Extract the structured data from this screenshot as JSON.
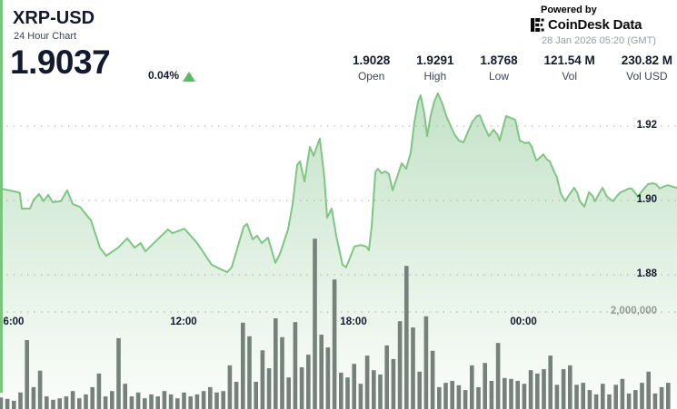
{
  "header": {
    "symbol": "XRP-USD",
    "subtitle": "24 Hour Chart",
    "price": "1.9037",
    "change_pct": "0.04%",
    "change_direction": "up",
    "stats": [
      {
        "value": "1.9028",
        "label": "Open"
      },
      {
        "value": "1.9291",
        "label": "High"
      },
      {
        "value": "1.8768",
        "label": "Low"
      },
      {
        "value": "121.54 M",
        "label": "Vol"
      },
      {
        "value": "230.82 M",
        "label": "Vol USD"
      }
    ]
  },
  "branding": {
    "powered_by": "Powered by",
    "brand_name": "CoinDesk",
    "brand_suffix": "Data",
    "timestamp": "28 Jan 2026 05:20 (GMT)"
  },
  "chart_data": {
    "type": "area",
    "title": "XRP-USD 24 Hour Chart",
    "legend": "none",
    "grid": "dotted horizontal",
    "x_axis": {
      "unit": "time of day (hours, 24 = midnight next day)",
      "domain_hours": [
        5.52,
        29.42
      ],
      "ticks": [
        {
          "t": 6,
          "label": "6:00"
        },
        {
          "t": 12,
          "label": "12:00"
        },
        {
          "t": 18,
          "label": "18:00"
        },
        {
          "t": 24,
          "label": "00:00"
        }
      ]
    },
    "price_axis": {
      "side": "right",
      "ylim": [
        1.87,
        1.93
      ],
      "ticks": [
        {
          "value": 1.92,
          "label": "1.92"
        },
        {
          "value": 1.9,
          "label": "1.90"
        },
        {
          "value": 1.88,
          "label": "1.88"
        }
      ]
    },
    "volume_axis": {
      "tick": {
        "value_millions": 2,
        "label": "2,000,000"
      }
    },
    "price_series": [
      [
        5.52,
        1.9032
      ],
      [
        5.84,
        1.9027
      ],
      [
        6.16,
        1.9022
      ],
      [
        6.22,
        1.902
      ],
      [
        6.29,
        1.8978
      ],
      [
        6.58,
        1.8978
      ],
      [
        6.71,
        1.9002
      ],
      [
        6.9,
        1.9017
      ],
      [
        7.06,
        1.8998
      ],
      [
        7.22,
        1.9015
      ],
      [
        7.38,
        1.8995
      ],
      [
        7.67,
        1.8998
      ],
      [
        7.89,
        1.9027
      ],
      [
        8.09,
        1.899
      ],
      [
        8.34,
        1.8983
      ],
      [
        8.73,
        1.8946
      ],
      [
        9.05,
        1.8873
      ],
      [
        9.27,
        1.8851
      ],
      [
        9.69,
        1.8873
      ],
      [
        10.01,
        1.8898
      ],
      [
        10.27,
        1.8873
      ],
      [
        10.49,
        1.8885
      ],
      [
        10.65,
        1.8863
      ],
      [
        11.45,
        1.8922
      ],
      [
        11.61,
        1.8912
      ],
      [
        12.03,
        1.8924
      ],
      [
        12.48,
        1.8885
      ],
      [
        12.99,
        1.8827
      ],
      [
        13.31,
        1.8815
      ],
      [
        13.54,
        1.8807
      ],
      [
        13.7,
        1.882
      ],
      [
        14.12,
        1.8929
      ],
      [
        14.24,
        1.8937
      ],
      [
        14.44,
        1.8895
      ],
      [
        14.6,
        1.8905
      ],
      [
        14.76,
        1.8885
      ],
      [
        14.98,
        1.89
      ],
      [
        15.24,
        1.8832
      ],
      [
        15.4,
        1.8856
      ],
      [
        15.69,
        1.8922
      ],
      [
        15.85,
        1.899
      ],
      [
        16.01,
        1.9095
      ],
      [
        16.11,
        1.9105
      ],
      [
        16.27,
        1.9051
      ],
      [
        16.46,
        1.9144
      ],
      [
        16.59,
        1.912
      ],
      [
        16.81,
        1.9166
      ],
      [
        16.97,
        1.9063
      ],
      [
        17.07,
        1.8954
      ],
      [
        17.23,
        1.8978
      ],
      [
        17.39,
        1.8905
      ],
      [
        17.61,
        1.8827
      ],
      [
        17.74,
        1.882
      ],
      [
        17.93,
        1.8856
      ],
      [
        18.03,
        1.8876
      ],
      [
        18.25,
        1.888
      ],
      [
        18.45,
        1.8876
      ],
      [
        18.54,
        1.8866
      ],
      [
        18.64,
        1.8929
      ],
      [
        18.77,
        1.9076
      ],
      [
        18.86,
        1.9085
      ],
      [
        18.99,
        1.9073
      ],
      [
        19.12,
        1.9078
      ],
      [
        19.25,
        1.9071
      ],
      [
        19.38,
        1.9027
      ],
      [
        19.54,
        1.9063
      ],
      [
        19.7,
        1.91
      ],
      [
        19.86,
        1.9085
      ],
      [
        20.02,
        1.9129
      ],
      [
        20.15,
        1.921
      ],
      [
        20.28,
        1.9266
      ],
      [
        20.37,
        1.9283
      ],
      [
        20.5,
        1.9234
      ],
      [
        20.6,
        1.9173
      ],
      [
        20.72,
        1.9227
      ],
      [
        20.85,
        1.9266
      ],
      [
        20.98,
        1.9288
      ],
      [
        21.14,
        1.9259
      ],
      [
        21.3,
        1.9222
      ],
      [
        21.4,
        1.9205
      ],
      [
        21.56,
        1.9178
      ],
      [
        21.72,
        1.9161
      ],
      [
        21.88,
        1.9156
      ],
      [
        22.04,
        1.9185
      ],
      [
        22.2,
        1.9212
      ],
      [
        22.36,
        1.9227
      ],
      [
        22.46,
        1.9229
      ],
      [
        22.62,
        1.9198
      ],
      [
        22.78,
        1.9173
      ],
      [
        22.94,
        1.919
      ],
      [
        23.07,
        1.9178
      ],
      [
        23.16,
        1.9161
      ],
      [
        23.29,
        1.92
      ],
      [
        23.39,
        1.9227
      ],
      [
        23.55,
        1.9222
      ],
      [
        23.71,
        1.9217
      ],
      [
        23.87,
        1.9161
      ],
      [
        24.06,
        1.9154
      ],
      [
        24.19,
        1.9156
      ],
      [
        24.29,
        1.9144
      ],
      [
        24.45,
        1.9107
      ],
      [
        24.58,
        1.9115
      ],
      [
        24.7,
        1.9124
      ],
      [
        24.83,
        1.911
      ],
      [
        24.93,
        1.9105
      ],
      [
        25.09,
        1.9076
      ],
      [
        25.18,
        1.9063
      ],
      [
        25.31,
        1.902
      ],
      [
        25.47,
        1.8998
      ],
      [
        25.63,
        1.9017
      ],
      [
        25.79,
        1.9034
      ],
      [
        25.89,
        1.9022
      ],
      [
        25.99,
        1.8998
      ],
      [
        26.15,
        1.8983
      ],
      [
        26.31,
        1.9022
      ],
      [
        26.44,
        1.9012
      ],
      [
        26.53,
        1.8998
      ],
      [
        26.66,
        1.9017
      ],
      [
        26.79,
        1.9034
      ],
      [
        26.95,
        1.901
      ],
      [
        27.08,
        1.9002
      ],
      [
        27.17,
        1.8998
      ],
      [
        27.3,
        1.9012
      ],
      [
        27.43,
        1.9022
      ],
      [
        27.59,
        1.9027
      ],
      [
        27.72,
        1.9032
      ],
      [
        27.82,
        1.9032
      ],
      [
        27.94,
        1.902
      ],
      [
        28.04,
        1.901
      ],
      [
        28.2,
        1.9027
      ],
      [
        28.4,
        1.9044
      ],
      [
        28.56,
        1.9046
      ],
      [
        28.68,
        1.9044
      ],
      [
        28.81,
        1.9032
      ],
      [
        28.94,
        1.9037
      ],
      [
        29.1,
        1.9041
      ],
      [
        29.26,
        1.9037
      ],
      [
        29.42,
        1.9034
      ]
    ],
    "volume_series_millions": [
      0.24,
      0.21,
      0.17,
      0.34,
      1.42,
      0.45,
      0.79,
      0.26,
      0.19,
      0.22,
      0.26,
      0.37,
      0.22,
      0.3,
      0.45,
      0.73,
      0.26,
      0.37,
      1.46,
      0.52,
      0.26,
      0.34,
      0.22,
      0.3,
      0.26,
      0.37,
      0.3,
      0.22,
      0.34,
      0.26,
      0.3,
      0.37,
      0.45,
      0.34,
      0.37,
      0.9,
      0.56,
      1.78,
      1.5,
      0.56,
      1.21,
      0.84,
      1.87,
      1.48,
      0.65,
      1.79,
      0.86,
      1.12,
      3.51,
      1.53,
      1.27,
      2.67,
      0.75,
      0.65,
      0.93,
      0.52,
      1.1,
      0.8,
      0.71,
      1.31,
      1.03,
      1.81,
      2.95,
      1.68,
      0.77,
      1.91,
      1.2,
      0.45,
      0.54,
      0.58,
      0.49,
      0.39,
      0.9,
      0.45,
      0.95,
      0.58,
      1.36,
      0.64,
      0.62,
      0.58,
      0.52,
      0.8,
      0.73,
      0.82,
      1.1,
      0.5,
      0.82,
      0.9,
      0.5,
      0.54,
      0.39,
      0.3,
      0.52,
      0.3,
      0.5,
      0.62,
      0.32,
      0.39,
      0.54,
      0.77,
      0.32,
      0.45,
      0.54
    ],
    "colors": {
      "line": "#7fc584",
      "fill": "#8cc893",
      "volume_bar": "#75817a",
      "grid_dots": "#adb4ad",
      "accent_green": "#5eb966",
      "text_dark": "#141a2e",
      "text_gray": "#989ea6"
    }
  }
}
